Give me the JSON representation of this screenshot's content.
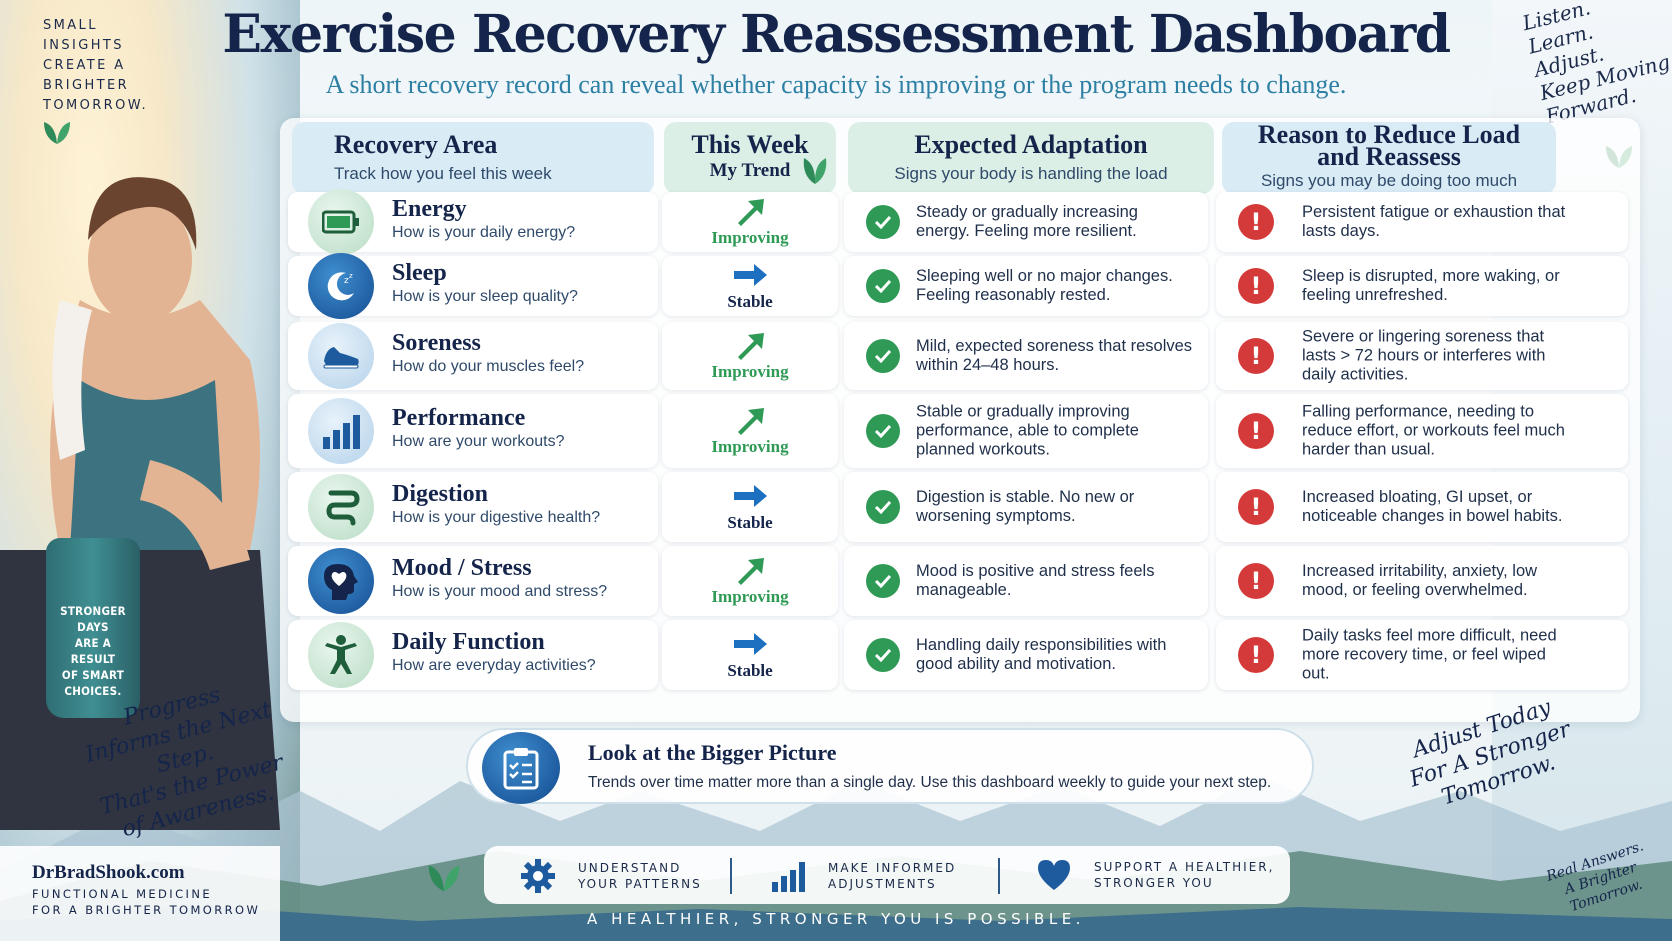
{
  "title": "Exercise Recovery Reassessment  Dashboard",
  "subtitle": "A short recovery record can reveal whether capacity is improving or the program needs to change.",
  "top_left_note": [
    "SMALL",
    "INSIGHTS",
    "CREATE A",
    "BRIGHTER",
    "TOMORROW."
  ],
  "top_right_note": [
    "Listen.",
    "Learn.",
    "Adjust.",
    "Keep Moving",
    "Forward."
  ],
  "headers": {
    "area": {
      "title": "Recovery Area",
      "sub": "Track how you feel this week"
    },
    "trend": {
      "title": "This Week",
      "sub": "My Trend"
    },
    "expected": {
      "title": "Expected Adaptation",
      "sub": "Signs your body is handling the load"
    },
    "reduce": {
      "title": "Reason to Reduce Load and Reassess",
      "sub": "Signs you may be doing too much"
    }
  },
  "rows": [
    {
      "name": "Energy",
      "question": "How is your daily energy?",
      "icon": "battery-icon",
      "trend": "Improving",
      "trend_icon": "arrow-up-right-icon",
      "expected": "Steady or gradually increasing energy. Feeling more resilient.",
      "reduce": "Persistent fatigue or exhaustion that lasts days."
    },
    {
      "name": "Sleep",
      "question": "How is your sleep quality?",
      "icon": "moon-icon",
      "trend": "Stable",
      "trend_icon": "arrow-right-icon",
      "expected": "Sleeping well or no major changes. Feeling reasonably rested.",
      "reduce": "Sleep is disrupted, more waking, or feeling unrefreshed."
    },
    {
      "name": "Soreness",
      "question": "How do your muscles feel?",
      "icon": "shoe-icon",
      "trend": "Improving",
      "trend_icon": "arrow-up-right-icon",
      "expected": "Mild, expected soreness that resolves within 24–48 hours.",
      "reduce": "Severe or lingering soreness that lasts > 72 hours or interferes with daily activities."
    },
    {
      "name": "Performance",
      "question": "How are your workouts?",
      "icon": "bar-chart-icon",
      "trend": "Improving",
      "trend_icon": "arrow-up-right-icon",
      "expected": "Stable or gradually improving performance, able to complete planned workouts.",
      "reduce": "Falling performance, needing to reduce effort, or workouts feel much harder than usual."
    },
    {
      "name": "Digestion",
      "question": "How is your digestive health?",
      "icon": "intestine-icon",
      "trend": "Stable",
      "trend_icon": "arrow-right-icon",
      "expected": "Digestion is stable. No new or worsening symptoms.",
      "reduce": "Increased bloating, GI upset, or noticeable changes in bowel habits."
    },
    {
      "name": "Mood / Stress",
      "question": "How is your mood and stress?",
      "icon": "head-heart-icon",
      "trend": "Improving",
      "trend_icon": "arrow-up-right-icon",
      "expected": "Mood is positive and stress feels manageable.",
      "reduce": "Increased irritability, anxiety, low mood, or feeling overwhelmed."
    },
    {
      "name": "Daily Function",
      "question": "How are everyday activities?",
      "icon": "person-icon",
      "trend": "Stable",
      "trend_icon": "arrow-right-icon",
      "expected": "Handling daily responsibilities with good ability and motivation.",
      "reduce": "Daily tasks feel more difficult, need more recovery time, or feel wiped out."
    }
  ],
  "banner": {
    "title": "Look at the Bigger Picture",
    "text": "Trends over time matter more than a single day. Use this dashboard weekly to guide your next step.",
    "icon": "clipboard-checklist-icon"
  },
  "features": [
    {
      "icon": "gear-icon",
      "lines": [
        "UNDERSTAND",
        "YOUR PATTERNS"
      ]
    },
    {
      "icon": "bar-chart-icon",
      "lines": [
        "MAKE INFORMED",
        "ADJUSTMENTS"
      ]
    },
    {
      "icon": "heart-icon",
      "lines": [
        "SUPPORT A HEALTHIER,",
        "STRONGER YOU"
      ]
    }
  ],
  "footer_tagline": "A HEALTHIER, STRONGER YOU IS POSSIBLE.",
  "brand": {
    "name": "DrBradShook.com",
    "tag": [
      "FUNCTIONAL MEDICINE",
      "FOR A BRIGHTER TOMORROW"
    ]
  },
  "bottle_text": [
    "STRONGER",
    "DAYS",
    "ARE A",
    "RESULT",
    "OF SMART",
    "CHOICES."
  ],
  "script_left": [
    "Progress",
    "Informs the Next Step.",
    "That's the Power",
    "of Awareness."
  ],
  "script_right": [
    "Adjust Today",
    "For A Stronger",
    "Tomorrow."
  ],
  "script_bottom_right": [
    "Real Answers.",
    "A Brighter",
    "Tomorrow."
  ],
  "colors": {
    "navy": "#14244a",
    "teal": "#2d7fa3",
    "green": "#2f9a55",
    "red": "#d43a3a",
    "blue": "#1d5a9e",
    "header_blue": "#d9ecf6",
    "header_green": "#dcefe6"
  }
}
